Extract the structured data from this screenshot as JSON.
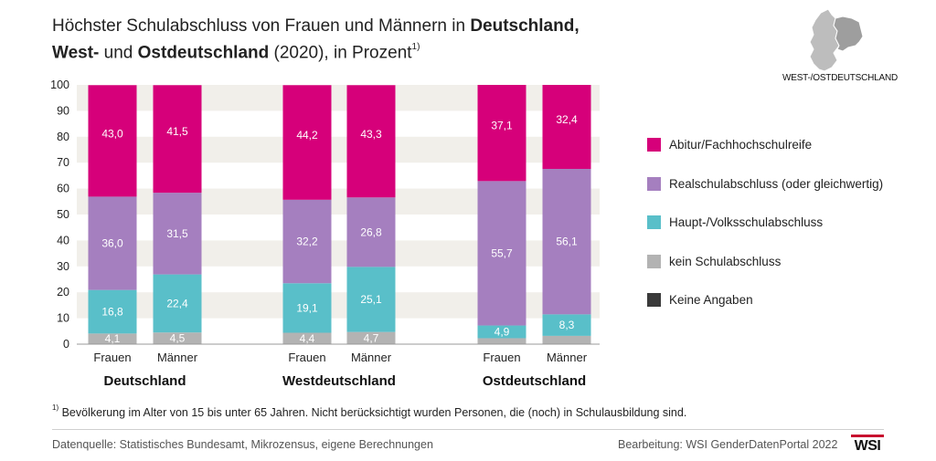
{
  "title": {
    "line1_a": "Höchster Schulabschluss von Frauen und Männern in ",
    "line1_b": "Deutschland,",
    "line2_a": "West-",
    "line2_b": " und ",
    "line2_c": "Ostdeutschland",
    "line2_d": " (2020), in Prozent",
    "footnote_mark": "1)"
  },
  "map": {
    "label": "WEST-/OSTDEUTSCHLAND"
  },
  "colors": {
    "abitur": "#d6007a",
    "real": "#a57fbf",
    "haupt": "#59bfc9",
    "kein": "#b3b3b3",
    "keine": "#3a3a3a",
    "band": "#f1efea",
    "axis": "#999999"
  },
  "chart_data": {
    "type": "bar",
    "stacked": true,
    "ylim": [
      0,
      100
    ],
    "yticks": [
      "0",
      "10",
      "20",
      "30",
      "40",
      "50",
      "60",
      "70",
      "80",
      "90",
      "100"
    ],
    "groups": [
      "Deutschland",
      "Westdeutschland",
      "Ostdeutschland"
    ],
    "categories": [
      "Frauen",
      "Männer",
      "Frauen",
      "Männer",
      "Frauen",
      "Männer"
    ],
    "group_of_category": [
      0,
      0,
      1,
      1,
      2,
      2
    ],
    "series": [
      {
        "key": "kein",
        "name": "kein Schulabschluss",
        "values": [
          4.1,
          4.5,
          4.4,
          4.7,
          2.3,
          3.2
        ],
        "labels": [
          "4,1",
          "4,5",
          "4,4",
          "4,7",
          "",
          ""
        ]
      },
      {
        "key": "haupt",
        "name": "Haupt-/Volksschulabschluss",
        "values": [
          16.8,
          22.4,
          19.1,
          25.1,
          4.9,
          8.3
        ],
        "labels": [
          "16,8",
          "22,4",
          "19,1",
          "25,1",
          "4,9",
          "8,3"
        ]
      },
      {
        "key": "real",
        "name": "Realschulabschluss (oder gleichwertig)",
        "values": [
          36.0,
          31.5,
          32.2,
          26.8,
          55.7,
          56.1
        ],
        "labels": [
          "36,0",
          "31,5",
          "32,2",
          "26,8",
          "55,7",
          "56,1"
        ]
      },
      {
        "key": "abitur",
        "name": "Abitur/Fachhochschulreife",
        "values": [
          43.0,
          41.5,
          44.2,
          43.3,
          37.1,
          32.4
        ],
        "labels": [
          "43,0",
          "41,5",
          "44,2",
          "43,3",
          "37,1",
          "32,4"
        ]
      }
    ],
    "legend": [
      {
        "key": "abitur",
        "label": "Abitur/Fachhochschulreife"
      },
      {
        "key": "real",
        "label": "Realschulabschluss (oder gleichwertig)"
      },
      {
        "key": "haupt",
        "label": "Haupt-/Volksschulabschluss"
      },
      {
        "key": "kein",
        "label": "kein Schulabschluss"
      },
      {
        "key": "keine",
        "label": "Keine Angaben"
      }
    ],
    "legend_position": "right"
  },
  "footnote": {
    "mark": "1)",
    "text": " Bevölkerung im Alter von 15 bis unter 65 Jahren. Nicht berücksichtigt wurden Personen, die (noch) in Schulausbildung sind."
  },
  "source": "Datenquelle: Statistisches Bundesamt, Mikrozensus, eigene Berechnungen",
  "credit": "Bearbeitung: WSI GenderDatenPortal 2022",
  "logo": "WSI"
}
